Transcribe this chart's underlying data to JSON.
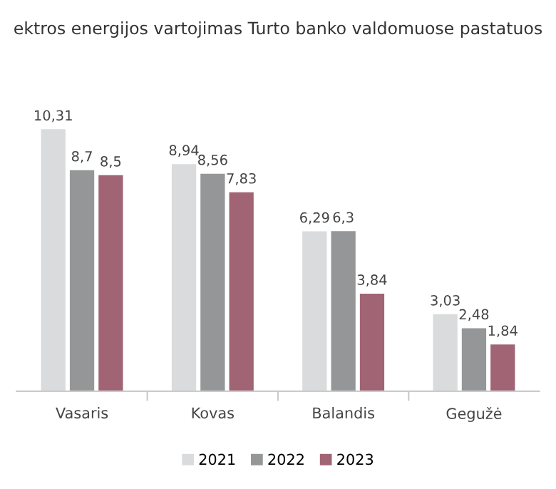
{
  "chart_data": {
    "type": "bar",
    "title": "ektros energijos vartojimas Turto banko valdomuose pastatuos",
    "categories": [
      "Vasaris",
      "Kovas",
      "Balandis",
      "Gegužė"
    ],
    "series": [
      {
        "name": "2021",
        "color": "#d9dbdc",
        "values": [
          10.31,
          8.94,
          6.29,
          3.03
        ],
        "value_labels": [
          "10,31",
          "8,94",
          "6,29",
          "3,03"
        ]
      },
      {
        "name": "2022",
        "color": "#949697",
        "values": [
          8.7,
          8.56,
          6.3,
          2.48
        ],
        "value_labels": [
          "8,7",
          "8,56",
          "6,3",
          "2,48"
        ]
      },
      {
        "name": "2023",
        "color": "#a06474",
        "values": [
          8.5,
          7.83,
          3.84,
          1.84
        ],
        "value_labels": [
          "8,5",
          "7,83",
          "3,84",
          "1,84"
        ]
      }
    ],
    "legend": "bottom",
    "grid": false
  }
}
